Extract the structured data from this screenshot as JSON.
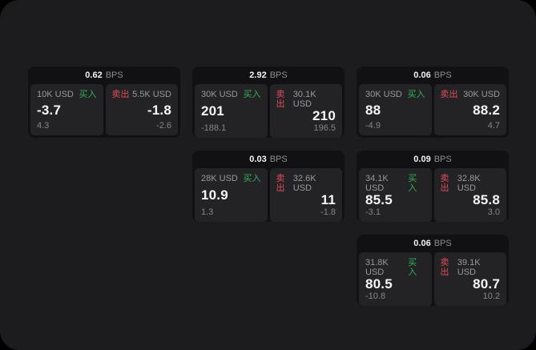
{
  "labels": {
    "bps_unit": "BPS",
    "buy": "买入",
    "sell": "卖出"
  },
  "colors": {
    "buy": "#30b158",
    "sell": "#e14c5a"
  },
  "cards": [
    {
      "row": 1,
      "col": 1,
      "bps": "0.62",
      "buy": {
        "amount": "10K USD",
        "value": "-3.7",
        "sub": "4.3"
      },
      "sell": {
        "amount": "5.5K USD",
        "value": "-1.8",
        "sub": "-2.6"
      }
    },
    {
      "row": 1,
      "col": 2,
      "bps": "2.92",
      "buy": {
        "amount": "30K USD",
        "value": "201",
        "sub": "-188.1"
      },
      "sell": {
        "amount": "30.1K USD",
        "value": "210",
        "sub": "196.5"
      }
    },
    {
      "row": 1,
      "col": 3,
      "bps": "0.06",
      "buy": {
        "amount": "30K USD",
        "value": "88",
        "sub": "-4.9"
      },
      "sell": {
        "amount": "30K USD",
        "value": "88.2",
        "sub": "4.7"
      }
    },
    {
      "row": 2,
      "col": 2,
      "bps": "0.03",
      "buy": {
        "amount": "28K USD",
        "value": "10.9",
        "sub": "1.3"
      },
      "sell": {
        "amount": "32.6K USD",
        "value": "11",
        "sub": "-1.8"
      }
    },
    {
      "row": 2,
      "col": 3,
      "bps": "0.09",
      "buy": {
        "amount": "34.1K USD",
        "value": "85.5",
        "sub": "-3.1"
      },
      "sell": {
        "amount": "32.8K USD",
        "value": "85.8",
        "sub": "3.0"
      }
    },
    {
      "row": 3,
      "col": 3,
      "bps": "0.06",
      "buy": {
        "amount": "31.8K USD",
        "value": "80.5",
        "sub": "-10.8"
      },
      "sell": {
        "amount": "39.1K USD",
        "value": "80.7",
        "sub": "10.2"
      }
    }
  ]
}
